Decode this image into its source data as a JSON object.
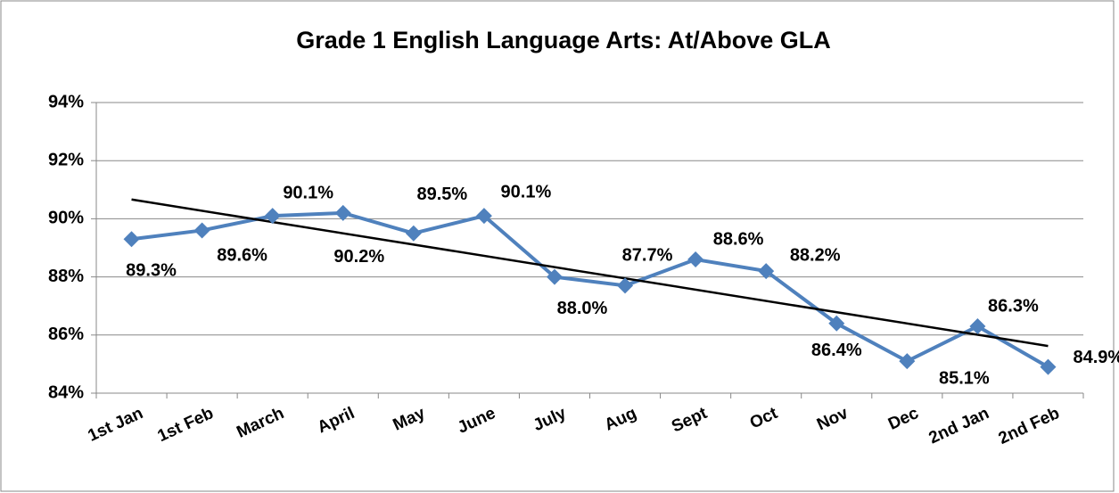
{
  "chart_data": {
    "type": "line",
    "title": "Grade 1 English Language Arts: At/Above GLA",
    "categories": [
      "1st Jan",
      "1st Feb",
      "March",
      "April",
      "May",
      "June",
      "July",
      "Aug",
      "Sept",
      "Oct",
      "Nov",
      "Dec",
      "2nd Jan",
      "2nd Feb"
    ],
    "series": [
      {
        "name": "At/Above GLA",
        "color": "#4f81bd",
        "values": [
          89.3,
          89.6,
          90.1,
          90.2,
          89.5,
          90.1,
          88.0,
          87.7,
          88.6,
          88.2,
          86.4,
          85.1,
          86.3,
          84.9
        ],
        "value_labels": [
          "89.3%",
          "89.6%",
          "90.1%",
          "90.2%",
          "89.5%",
          "90.1%",
          "88.0%",
          "87.7%",
          "88.6%",
          "88.2%",
          "86.4%",
          "85.1%",
          "86.3%",
          "84.9%"
        ]
      }
    ],
    "ylim": [
      84,
      94
    ],
    "yticks": [
      {
        "value": 84,
        "label": "84%"
      },
      {
        "value": 86,
        "label": "86%"
      },
      {
        "value": 88,
        "label": "88%"
      },
      {
        "value": 90,
        "label": "90%"
      },
      {
        "value": 92,
        "label": "92%"
      },
      {
        "value": 94,
        "label": "94%"
      }
    ],
    "grid": true,
    "trendline": "linear",
    "trendline_color": "#000000"
  }
}
